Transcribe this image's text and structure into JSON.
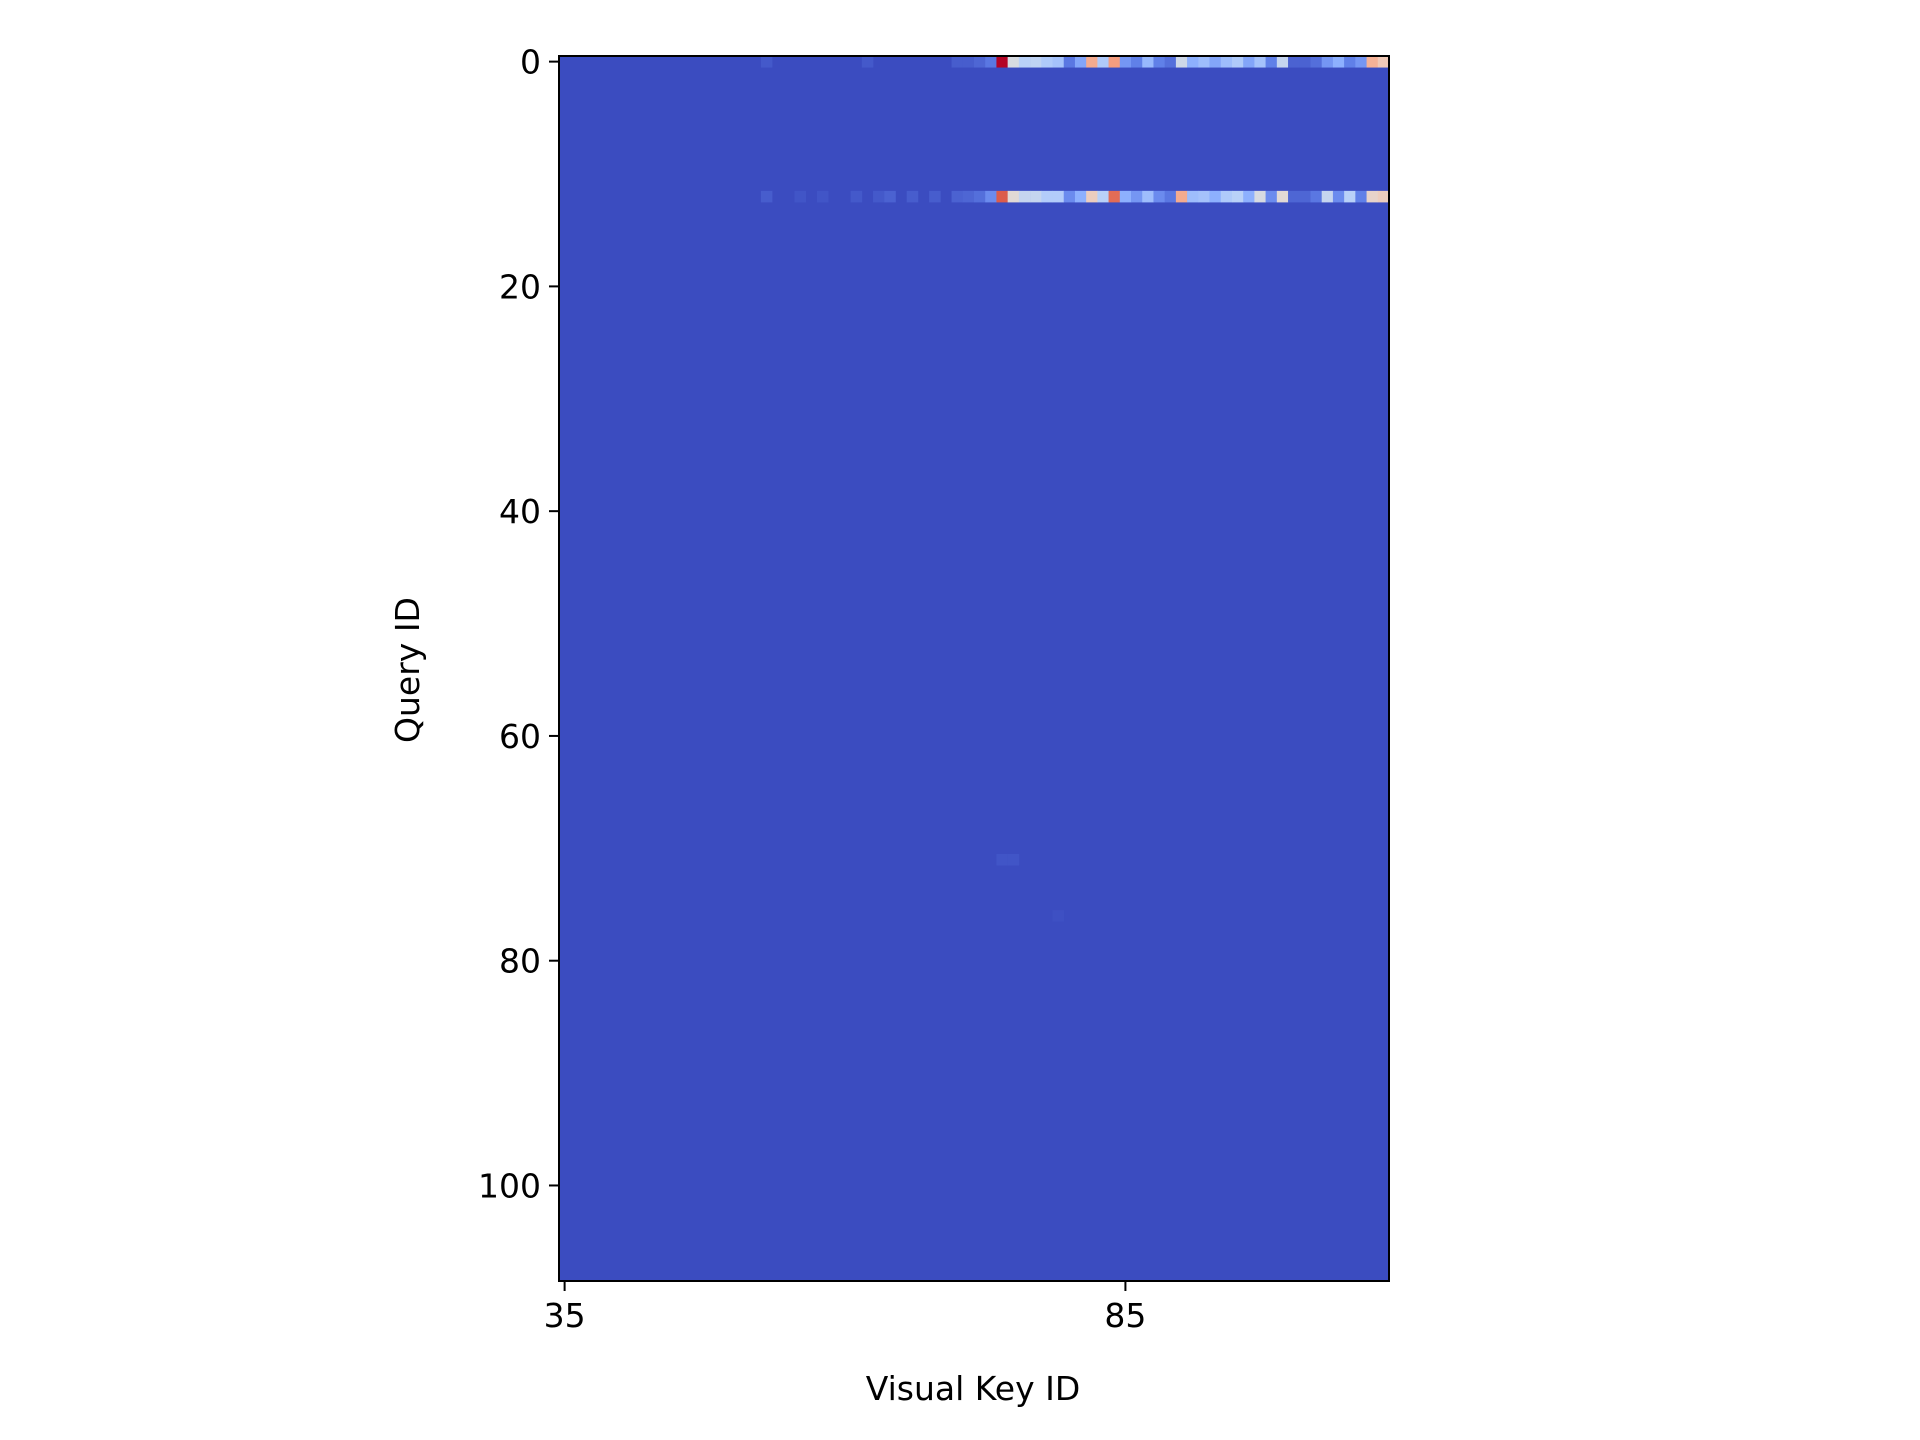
{
  "chart_data": {
    "type": "heatmap",
    "title": "",
    "xlabel": "Visual Key ID",
    "ylabel": "Query ID",
    "x_ticks": [
      35,
      85
    ],
    "y_ticks": [
      0,
      20,
      40,
      60,
      80,
      100
    ],
    "xlim": [
      34.5,
      108.5
    ],
    "ylim": [
      108.5,
      -0.5
    ],
    "columns": 74,
    "rows": 109,
    "colormap": "coolwarm",
    "base_color": "#3b4cc0",
    "base_value": 0,
    "cells": [
      {
        "row": 0,
        "col": 53,
        "value": 0.03
      },
      {
        "row": 0,
        "col": 62,
        "value": 0.03
      },
      {
        "row": 0,
        "col": 70,
        "value": 0.04
      },
      {
        "row": 0,
        "col": 71,
        "value": 0.04
      },
      {
        "row": 0,
        "col": 72,
        "value": 0.06
      },
      {
        "row": 0,
        "col": 73,
        "value": 0.1
      },
      {
        "row": 0,
        "col": 74,
        "value": 1.0
      },
      {
        "row": 0,
        "col": 75,
        "value": 0.48
      },
      {
        "row": 0,
        "col": 76,
        "value": 0.38
      },
      {
        "row": 0,
        "col": 77,
        "value": 0.4
      },
      {
        "row": 0,
        "col": 78,
        "value": 0.35
      },
      {
        "row": 0,
        "col": 79,
        "value": 0.32
      },
      {
        "row": 0,
        "col": 80,
        "value": 0.1
      },
      {
        "row": 0,
        "col": 81,
        "value": 0.22
      },
      {
        "row": 0,
        "col": 82,
        "value": 0.7
      },
      {
        "row": 0,
        "col": 83,
        "value": 0.35
      },
      {
        "row": 0,
        "col": 84,
        "value": 0.74
      },
      {
        "row": 0,
        "col": 85,
        "value": 0.18
      },
      {
        "row": 0,
        "col": 86,
        "value": 0.12
      },
      {
        "row": 0,
        "col": 87,
        "value": 0.28
      },
      {
        "row": 0,
        "col": 88,
        "value": 0.12
      },
      {
        "row": 0,
        "col": 89,
        "value": 0.08
      },
      {
        "row": 0,
        "col": 90,
        "value": 0.45
      },
      {
        "row": 0,
        "col": 91,
        "value": 0.25
      },
      {
        "row": 0,
        "col": 92,
        "value": 0.3
      },
      {
        "row": 0,
        "col": 93,
        "value": 0.22
      },
      {
        "row": 0,
        "col": 94,
        "value": 0.3
      },
      {
        "row": 0,
        "col": 95,
        "value": 0.35
      },
      {
        "row": 0,
        "col": 96,
        "value": 0.22
      },
      {
        "row": 0,
        "col": 97,
        "value": 0.32
      },
      {
        "row": 0,
        "col": 98,
        "value": 0.12
      },
      {
        "row": 0,
        "col": 99,
        "value": 0.42
      },
      {
        "row": 0,
        "col": 100,
        "value": 0.05
      },
      {
        "row": 0,
        "col": 101,
        "value": 0.05
      },
      {
        "row": 0,
        "col": 102,
        "value": 0.08
      },
      {
        "row": 0,
        "col": 103,
        "value": 0.18
      },
      {
        "row": 0,
        "col": 104,
        "value": 0.25
      },
      {
        "row": 0,
        "col": 105,
        "value": 0.12
      },
      {
        "row": 0,
        "col": 106,
        "value": 0.18
      },
      {
        "row": 0,
        "col": 107,
        "value": 0.68
      },
      {
        "row": 0,
        "col": 108,
        "value": 0.6
      },
      {
        "row": 12,
        "col": 53,
        "value": 0.04
      },
      {
        "row": 12,
        "col": 56,
        "value": 0.02
      },
      {
        "row": 12,
        "col": 58,
        "value": 0.02
      },
      {
        "row": 12,
        "col": 61,
        "value": 0.03
      },
      {
        "row": 12,
        "col": 63,
        "value": 0.03
      },
      {
        "row": 12,
        "col": 64,
        "value": 0.05
      },
      {
        "row": 12,
        "col": 66,
        "value": 0.04
      },
      {
        "row": 12,
        "col": 68,
        "value": 0.04
      },
      {
        "row": 12,
        "col": 70,
        "value": 0.05
      },
      {
        "row": 12,
        "col": 71,
        "value": 0.06
      },
      {
        "row": 12,
        "col": 72,
        "value": 0.08
      },
      {
        "row": 12,
        "col": 73,
        "value": 0.15
      },
      {
        "row": 12,
        "col": 74,
        "value": 0.88
      },
      {
        "row": 12,
        "col": 75,
        "value": 0.52
      },
      {
        "row": 12,
        "col": 76,
        "value": 0.42
      },
      {
        "row": 12,
        "col": 77,
        "value": 0.42
      },
      {
        "row": 12,
        "col": 78,
        "value": 0.36
      },
      {
        "row": 12,
        "col": 79,
        "value": 0.36
      },
      {
        "row": 12,
        "col": 80,
        "value": 0.15
      },
      {
        "row": 12,
        "col": 81,
        "value": 0.25
      },
      {
        "row": 12,
        "col": 82,
        "value": 0.58
      },
      {
        "row": 12,
        "col": 83,
        "value": 0.38
      },
      {
        "row": 12,
        "col": 84,
        "value": 0.85
      },
      {
        "row": 12,
        "col": 85,
        "value": 0.25
      },
      {
        "row": 12,
        "col": 86,
        "value": 0.18
      },
      {
        "row": 12,
        "col": 87,
        "value": 0.3
      },
      {
        "row": 12,
        "col": 88,
        "value": 0.15
      },
      {
        "row": 12,
        "col": 89,
        "value": 0.1
      },
      {
        "row": 12,
        "col": 90,
        "value": 0.7
      },
      {
        "row": 12,
        "col": 91,
        "value": 0.3
      },
      {
        "row": 12,
        "col": 92,
        "value": 0.32
      },
      {
        "row": 12,
        "col": 93,
        "value": 0.25
      },
      {
        "row": 12,
        "col": 94,
        "value": 0.35
      },
      {
        "row": 12,
        "col": 95,
        "value": 0.38
      },
      {
        "row": 12,
        "col": 96,
        "value": 0.25
      },
      {
        "row": 12,
        "col": 97,
        "value": 0.48
      },
      {
        "row": 12,
        "col": 98,
        "value": 0.15
      },
      {
        "row": 12,
        "col": 99,
        "value": 0.52
      },
      {
        "row": 12,
        "col": 100,
        "value": 0.06
      },
      {
        "row": 12,
        "col": 101,
        "value": 0.06
      },
      {
        "row": 12,
        "col": 102,
        "value": 0.1
      },
      {
        "row": 12,
        "col": 103,
        "value": 0.42
      },
      {
        "row": 12,
        "col": 104,
        "value": 0.15
      },
      {
        "row": 12,
        "col": 105,
        "value": 0.38
      },
      {
        "row": 12,
        "col": 106,
        "value": 0.12
      },
      {
        "row": 12,
        "col": 107,
        "value": 0.55
      },
      {
        "row": 12,
        "col": 108,
        "value": 0.58
      },
      {
        "row": 71,
        "col": 74,
        "value": 0.02
      },
      {
        "row": 71,
        "col": 75,
        "value": 0.02
      },
      {
        "row": 76,
        "col": 79,
        "value": 0.01
      }
    ]
  }
}
